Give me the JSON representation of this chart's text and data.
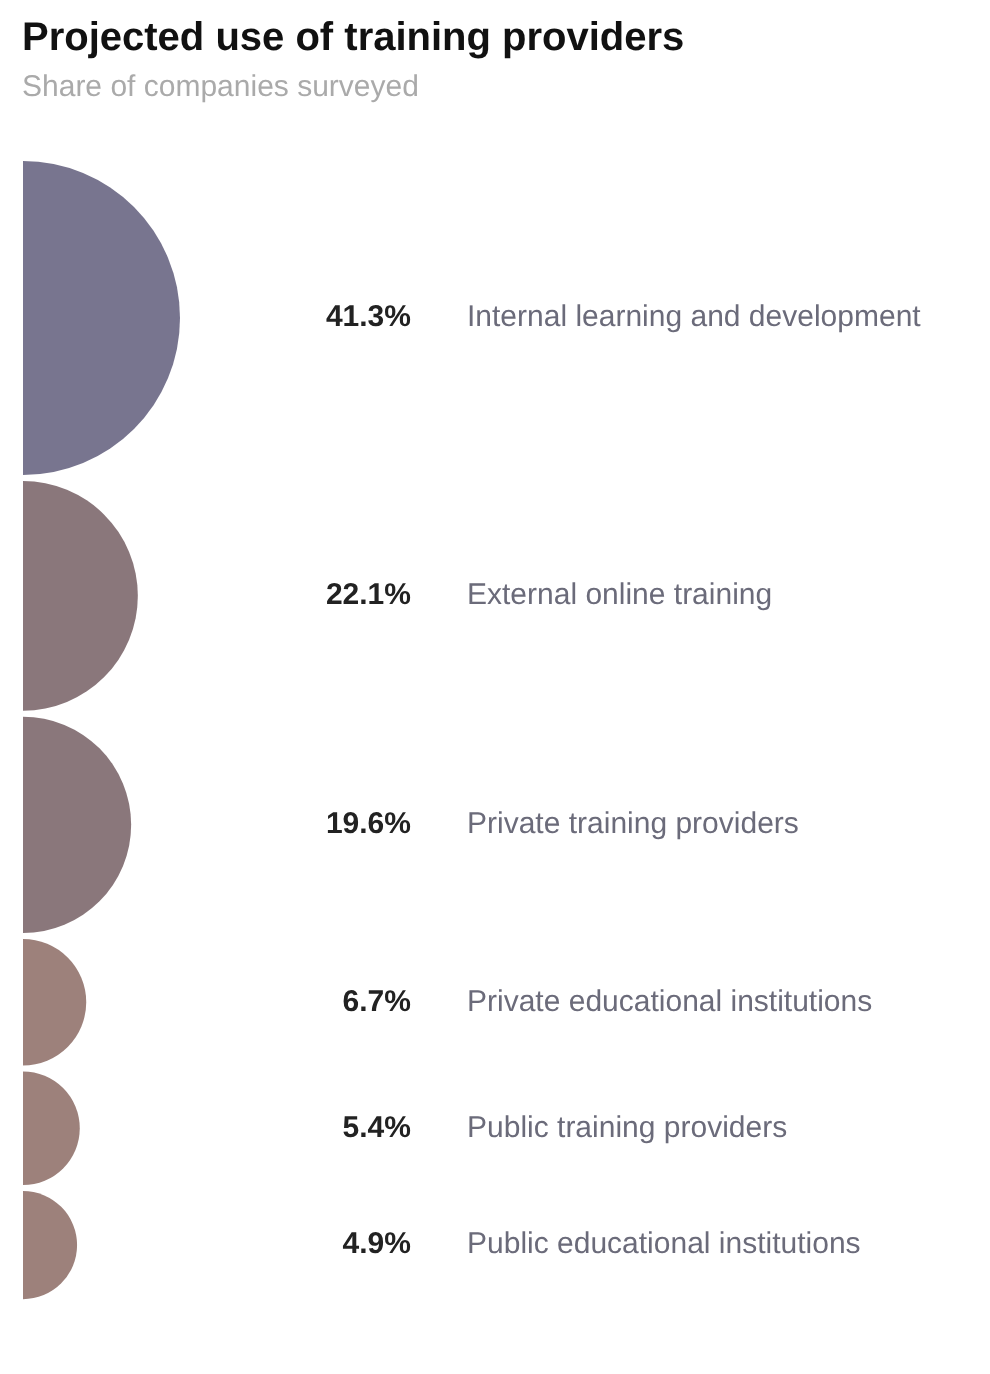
{
  "chart_data": {
    "type": "other",
    "title": "Projected use of training providers",
    "subtitle": "Share of companies surveyed",
    "categories": [
      "Internal learning and development",
      "External online training",
      "Private training providers",
      "Private educational institutions",
      "Public training providers",
      "Public educational institutions"
    ],
    "values": [
      41.3,
      22.1,
      19.6,
      6.7,
      5.4,
      4.9
    ],
    "value_labels": [
      "41.3%",
      "22.1%",
      "19.6%",
      "6.7%",
      "5.4%",
      "4.9%"
    ],
    "colors": [
      "#78758f",
      "#8a777b",
      "#8a777b",
      "#9d817b",
      "#9d817b",
      "#9d817b"
    ]
  }
}
